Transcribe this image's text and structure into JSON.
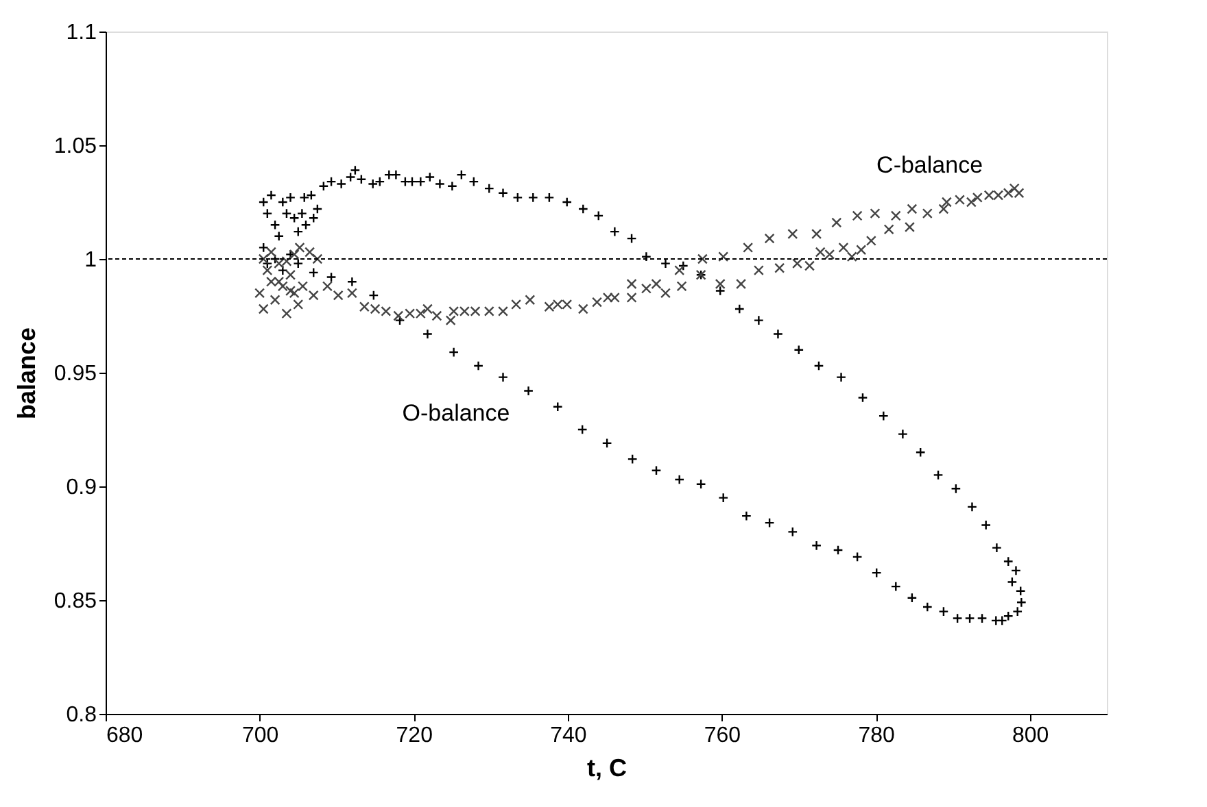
{
  "chart_data": {
    "type": "scatter",
    "xlabel": "t, C",
    "ylabel": "balance",
    "xlim": [
      680,
      810
    ],
    "xticks": [
      680,
      700,
      720,
      740,
      760,
      780,
      800
    ],
    "ylim": [
      0.8,
      1.1
    ],
    "yticks": [
      0.8,
      0.85,
      0.9,
      0.95,
      1,
      1.05,
      1.1
    ],
    "grid": false,
    "legend": false,
    "ref_lines": [
      {
        "axis": "y",
        "value": 1,
        "line_style": "dashed",
        "color": "#000000"
      }
    ],
    "series": [
      {
        "name": "O-balance",
        "color": "#000000",
        "marker": "cross",
        "x": [
          700.5,
          701,
          701.5,
          702,
          702.5,
          703,
          703.5,
          704,
          704.5,
          705,
          705.5,
          706,
          707,
          707.5,
          700.5,
          701,
          702,
          703,
          704,
          705,
          705.8,
          706.7,
          708.3,
          709.3,
          710.6,
          711.8,
          712.4,
          713.2,
          714.7,
          715.6,
          716.8,
          717.7,
          718.9,
          719.8,
          720.9,
          722.1,
          723.4,
          725.0,
          726.2,
          727.8,
          729.8,
          731.6,
          733.5,
          735.5,
          737.6,
          739.9,
          742.0,
          744.0,
          746.1,
          748.3,
          750.2,
          752.7,
          755.0,
          757.3,
          759.8,
          762.3,
          764.8,
          767.3,
          770.0,
          772.6,
          775.5,
          778.3,
          781.0,
          783.5,
          785.8,
          788.1,
          790.4,
          792.5,
          794.3,
          795.7,
          797.2,
          798.2,
          797.7,
          798.8,
          798.9,
          798.4,
          797.2,
          796.4,
          795.6,
          793.8,
          792.2,
          790.6,
          788.8,
          786.7,
          784.7,
          782.6,
          780.1,
          777.6,
          775.1,
          772.3,
          769.2,
          766.2,
          763.2,
          760.2,
          757.3,
          754.5,
          751.5,
          748.4,
          745.1,
          741.9,
          738.7,
          734.9,
          731.6,
          728.4,
          725.2,
          721.8,
          718.2,
          714.8,
          712.0,
          709.3,
          707.0
        ],
        "values": [
          1.025,
          1.02,
          1.028,
          1.015,
          1.01,
          1.025,
          1.02,
          1.027,
          1.018,
          1.012,
          1.02,
          1.015,
          1.018,
          1.022,
          1.005,
          0.998,
          1.0,
          0.995,
          1.002,
          0.998,
          1.027,
          1.028,
          1.032,
          1.034,
          1.033,
          1.036,
          1.039,
          1.035,
          1.033,
          1.034,
          1.037,
          1.037,
          1.034,
          1.034,
          1.034,
          1.036,
          1.033,
          1.032,
          1.037,
          1.034,
          1.031,
          1.029,
          1.027,
          1.027,
          1.027,
          1.025,
          1.022,
          1.019,
          1.012,
          1.009,
          1.001,
          0.998,
          0.997,
          0.993,
          0.986,
          0.978,
          0.973,
          0.967,
          0.96,
          0.953,
          0.948,
          0.939,
          0.931,
          0.923,
          0.915,
          0.905,
          0.899,
          0.891,
          0.883,
          0.873,
          0.867,
          0.863,
          0.858,
          0.854,
          0.849,
          0.845,
          0.843,
          0.841,
          0.841,
          0.842,
          0.842,
          0.842,
          0.845,
          0.847,
          0.851,
          0.856,
          0.862,
          0.869,
          0.872,
          0.874,
          0.88,
          0.884,
          0.887,
          0.895,
          0.901,
          0.903,
          0.907,
          0.912,
          0.919,
          0.925,
          0.935,
          0.942,
          0.948,
          0.953,
          0.959,
          0.967,
          0.973,
          0.984,
          0.99,
          0.992,
          0.994
        ]
      },
      {
        "name": "C-balance",
        "color": "#444444",
        "marker": "x",
        "x": [
          700,
          700.5,
          701,
          701.5,
          702,
          702.5,
          703,
          703.5,
          704,
          704.5,
          705,
          700.5,
          701.5,
          702.5,
          703.5,
          704.5,
          705.2,
          706.5,
          707.5,
          704.0,
          705.6,
          707.0,
          708.8,
          710.2,
          712.0,
          713.6,
          715.0,
          716.4,
          718.0,
          719.5,
          720.9,
          721.8,
          723.0,
          724.8,
          725.2,
          726.6,
          728.0,
          729.8,
          731.6,
          733.3,
          735.1,
          737.6,
          738.7,
          739.9,
          742.0,
          743.8,
          745.2,
          746.1,
          748.3,
          748.3,
          750.2,
          751.5,
          752.7,
          754.8,
          754.5,
          757.5,
          757.3,
          759.8,
          760.2,
          762.5,
          763.4,
          764.8,
          766.2,
          767.5,
          769.2,
          769.8,
          771.4,
          772.3,
          772.8,
          774.0,
          774.9,
          775.8,
          776.9,
          777.6,
          778.1,
          779.4,
          779.9,
          781.7,
          782.6,
          784.4,
          784.7,
          786.7,
          788.8,
          789.2,
          790.9,
          792.4,
          793.2,
          794.7,
          795.9,
          797.2,
          798.0,
          798.6
        ],
        "values": [
          0.985,
          0.978,
          0.995,
          0.99,
          0.982,
          0.998,
          0.988,
          0.976,
          0.993,
          0.985,
          0.98,
          1.0,
          1.003,
          0.99,
          0.999,
          1.002,
          1.005,
          1.003,
          1.0,
          0.986,
          0.988,
          0.984,
          0.988,
          0.984,
          0.985,
          0.979,
          0.978,
          0.977,
          0.975,
          0.976,
          0.976,
          0.978,
          0.975,
          0.973,
          0.977,
          0.977,
          0.977,
          0.977,
          0.977,
          0.98,
          0.982,
          0.979,
          0.98,
          0.98,
          0.978,
          0.981,
          0.983,
          0.983,
          0.983,
          0.989,
          0.987,
          0.989,
          0.985,
          0.988,
          0.995,
          1.0,
          0.993,
          0.989,
          1.001,
          0.989,
          1.005,
          0.995,
          1.009,
          0.996,
          1.011,
          0.998,
          0.997,
          1.011,
          1.003,
          1.002,
          1.016,
          1.005,
          1.001,
          1.019,
          1.004,
          1.008,
          1.02,
          1.013,
          1.019,
          1.014,
          1.022,
          1.02,
          1.022,
          1.025,
          1.026,
          1.025,
          1.027,
          1.028,
          1.028,
          1.029,
          1.031,
          1.029
        ]
      }
    ]
  }
}
